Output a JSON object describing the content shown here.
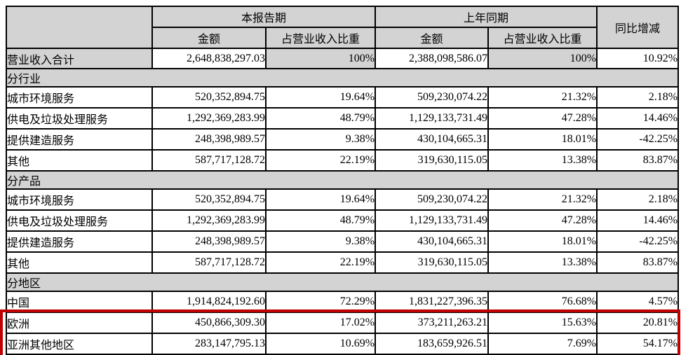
{
  "table": {
    "header": {
      "corner": "",
      "period_current": "本报告期",
      "period_prior": "上年同期",
      "amount": "金额",
      "ratio": "占营业收入比重",
      "yoy": "同比增减"
    },
    "rows": [
      {
        "type": "data",
        "shaded": true,
        "label": "营业收入合计",
        "cells": [
          "2,648,838,297.03",
          "100%",
          "2,388,098,586.07",
          "100%",
          "10.92%"
        ]
      },
      {
        "type": "section",
        "label": "分行业"
      },
      {
        "type": "data",
        "label": "城市环境服务",
        "cells": [
          "520,352,894.75",
          "19.64%",
          "509,230,074.22",
          "21.32%",
          "2.18%"
        ]
      },
      {
        "type": "data",
        "label": "供电及垃圾处理服务",
        "cells": [
          "1,292,369,283.99",
          "48.79%",
          "1,129,133,731.49",
          "47.28%",
          "14.46%"
        ]
      },
      {
        "type": "data",
        "label": "提供建造服务",
        "cells": [
          "248,398,989.57",
          "9.38%",
          "430,104,665.31",
          "18.01%",
          "-42.25%"
        ]
      },
      {
        "type": "data",
        "label": "其他",
        "cells": [
          "587,717,128.72",
          "22.19%",
          "319,630,115.05",
          "13.38%",
          "83.87%"
        ]
      },
      {
        "type": "section",
        "label": "分产品"
      },
      {
        "type": "data",
        "label": "城市环境服务",
        "cells": [
          "520,352,894.75",
          "19.64%",
          "509,230,074.22",
          "21.32%",
          "2.18%"
        ]
      },
      {
        "type": "data",
        "label": "供电及垃圾处理服务",
        "cells": [
          "1,292,369,283.99",
          "48.79%",
          "1,129,133,731.49",
          "47.28%",
          "14.46%"
        ]
      },
      {
        "type": "data",
        "label": "提供建造服务",
        "cells": [
          "248,398,989.57",
          "9.38%",
          "430,104,665.31",
          "18.01%",
          "-42.25%"
        ]
      },
      {
        "type": "data",
        "label": "其他",
        "cells": [
          "587,717,128.72",
          "22.19%",
          "319,630,115.05",
          "13.38%",
          "83.87%"
        ]
      },
      {
        "type": "section",
        "label": "分地区"
      },
      {
        "type": "data",
        "label": "中国",
        "cells": [
          "1,914,824,192.60",
          "72.29%",
          "1,831,227,396.35",
          "76.68%",
          "4.57%"
        ]
      },
      {
        "type": "data",
        "highlight": true,
        "label": "欧洲",
        "cells": [
          "450,866,309.30",
          "17.02%",
          "373,211,263.21",
          "15.63%",
          "20.81%"
        ]
      },
      {
        "type": "data",
        "highlight": true,
        "label": "亚洲其他地区",
        "cells": [
          "283,147,795.13",
          "10.69%",
          "183,659,926.51",
          "7.69%",
          "54.17%"
        ]
      }
    ]
  },
  "annotation": {
    "highlight_color": "#c00000"
  },
  "colors": {
    "shade": "#d3d3d3",
    "border": "#000000",
    "background": "#ffffff"
  }
}
